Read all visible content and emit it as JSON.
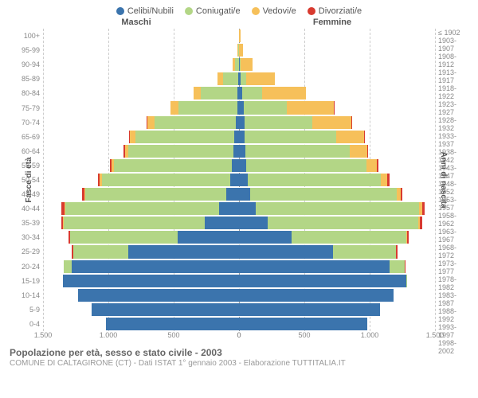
{
  "type": "population-pyramid",
  "legend": [
    {
      "label": "Celibi/Nubili",
      "color": "#3b74ad"
    },
    {
      "label": "Coniugati/e",
      "color": "#b3d686"
    },
    {
      "label": "Vedovi/e",
      "color": "#f6c05a"
    },
    {
      "label": "Divorziati/e",
      "color": "#d83a2f"
    }
  ],
  "column_titles": {
    "left": "Maschi",
    "right": "Femmine"
  },
  "yaxis_left_label": "Fasce di età",
  "yaxis_right_label": "Anni di nascita",
  "age_bands": [
    "100+",
    "95-99",
    "90-94",
    "85-89",
    "80-84",
    "75-79",
    "70-74",
    "65-69",
    "60-64",
    "55-59",
    "50-54",
    "45-49",
    "40-44",
    "35-39",
    "30-34",
    "25-29",
    "20-24",
    "15-19",
    "10-14",
    "5-9",
    "0-4"
  ],
  "birth_years": [
    "≤ 1902",
    "1903-1907",
    "1908-1912",
    "1913-1917",
    "1918-1922",
    "1923-1927",
    "1928-1932",
    "1933-1937",
    "1938-1942",
    "1943-1947",
    "1948-1952",
    "1953-1957",
    "1958-1962",
    "1963-1967",
    "1968-1972",
    "1973-1977",
    "1978-1982",
    "1983-1987",
    "1988-1992",
    "1993-1997",
    "1998-2002"
  ],
  "xaxis": {
    "max": 1500,
    "ticks_male": [
      "1.500",
      "1.000",
      "500",
      "0"
    ],
    "ticks_female": [
      "0",
      "500",
      "1.000",
      "1.500"
    ]
  },
  "males": [
    {
      "single": 0,
      "married": 0,
      "widowed": 2,
      "divorced": 0
    },
    {
      "single": 0,
      "married": 5,
      "widowed": 5,
      "divorced": 0
    },
    {
      "single": 2,
      "married": 30,
      "widowed": 20,
      "divorced": 0
    },
    {
      "single": 5,
      "married": 120,
      "widowed": 40,
      "divorced": 0
    },
    {
      "single": 10,
      "married": 280,
      "widowed": 60,
      "divorced": 0
    },
    {
      "single": 15,
      "married": 450,
      "widowed": 60,
      "divorced": 2
    },
    {
      "single": 25,
      "married": 620,
      "widowed": 55,
      "divorced": 5
    },
    {
      "single": 35,
      "married": 760,
      "widowed": 40,
      "divorced": 8
    },
    {
      "single": 45,
      "married": 800,
      "widowed": 30,
      "divorced": 10
    },
    {
      "single": 55,
      "married": 900,
      "widowed": 20,
      "divorced": 12
    },
    {
      "single": 70,
      "married": 980,
      "widowed": 15,
      "divorced": 15
    },
    {
      "single": 95,
      "married": 1080,
      "widowed": 10,
      "divorced": 18
    },
    {
      "single": 150,
      "married": 1180,
      "widowed": 8,
      "divorced": 20
    },
    {
      "single": 260,
      "married": 1080,
      "widowed": 5,
      "divorced": 18
    },
    {
      "single": 470,
      "married": 820,
      "widowed": 2,
      "divorced": 12
    },
    {
      "single": 850,
      "married": 420,
      "widowed": 0,
      "divorced": 8
    },
    {
      "single": 1280,
      "married": 60,
      "widowed": 0,
      "divorced": 2
    },
    {
      "single": 1350,
      "married": 0,
      "widowed": 0,
      "divorced": 0
    },
    {
      "single": 1230,
      "married": 0,
      "widowed": 0,
      "divorced": 0
    },
    {
      "single": 1130,
      "married": 0,
      "widowed": 0,
      "divorced": 0
    },
    {
      "single": 1020,
      "married": 0,
      "widowed": 0,
      "divorced": 0
    }
  ],
  "females": [
    {
      "single": 2,
      "married": 0,
      "widowed": 10,
      "divorced": 0
    },
    {
      "single": 3,
      "married": 0,
      "widowed": 30,
      "divorced": 0
    },
    {
      "single": 8,
      "married": 5,
      "widowed": 90,
      "divorced": 0
    },
    {
      "single": 15,
      "married": 40,
      "widowed": 220,
      "divorced": 0
    },
    {
      "single": 25,
      "married": 150,
      "widowed": 340,
      "divorced": 0
    },
    {
      "single": 35,
      "married": 330,
      "widowed": 360,
      "divorced": 2
    },
    {
      "single": 40,
      "married": 520,
      "widowed": 300,
      "divorced": 5
    },
    {
      "single": 45,
      "married": 700,
      "widowed": 210,
      "divorced": 8
    },
    {
      "single": 50,
      "married": 800,
      "widowed": 130,
      "divorced": 10
    },
    {
      "single": 55,
      "married": 920,
      "widowed": 80,
      "divorced": 12
    },
    {
      "single": 65,
      "married": 1020,
      "widowed": 50,
      "divorced": 15
    },
    {
      "single": 85,
      "married": 1120,
      "widowed": 30,
      "divorced": 18
    },
    {
      "single": 130,
      "married": 1250,
      "widowed": 20,
      "divorced": 22
    },
    {
      "single": 220,
      "married": 1150,
      "widowed": 12,
      "divorced": 20
    },
    {
      "single": 400,
      "married": 880,
      "widowed": 6,
      "divorced": 15
    },
    {
      "single": 720,
      "married": 480,
      "widowed": 2,
      "divorced": 10
    },
    {
      "single": 1150,
      "married": 120,
      "widowed": 0,
      "divorced": 3
    },
    {
      "single": 1280,
      "married": 5,
      "widowed": 0,
      "divorced": 0
    },
    {
      "single": 1180,
      "married": 0,
      "widowed": 0,
      "divorced": 0
    },
    {
      "single": 1080,
      "married": 0,
      "widowed": 0,
      "divorced": 0
    },
    {
      "single": 980,
      "married": 0,
      "widowed": 0,
      "divorced": 0
    }
  ],
  "caption_title": "Popolazione per età, sesso e stato civile - 2003",
  "caption_sub": "COMUNE DI CALTAGIRONE (CT) - Dati ISTAT 1° gennaio 2003 - Elaborazione TUTTITALIA.IT",
  "background_color": "#ffffff",
  "grid_color": "#cccccc",
  "center_line_color": "#999999"
}
